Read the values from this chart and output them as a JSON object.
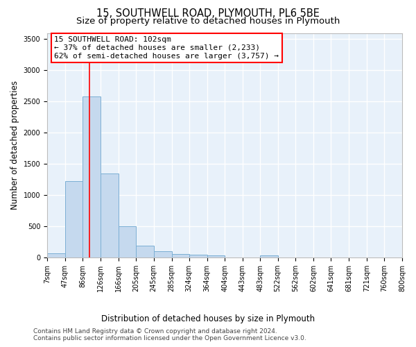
{
  "title_line1": "15, SOUTHWELL ROAD, PLYMOUTH, PL6 5BE",
  "title_line2": "Size of property relative to detached houses in Plymouth",
  "xlabel": "Distribution of detached houses by size in Plymouth",
  "ylabel": "Number of detached properties",
  "bar_color": "#c5d9ee",
  "bar_edge_color": "#7bafd4",
  "background_color": "#e8f1fa",
  "grid_color": "#d0dde8",
  "vline_color": "red",
  "vline_x": 102,
  "annotation_line1": "15 SOUTHWELL ROAD: 102sqm",
  "annotation_line2": "← 37% of detached houses are smaller (2,233)",
  "annotation_line3": "62% of semi-detached houses are larger (3,757) →",
  "bin_edges": [
    7,
    47,
    86,
    126,
    166,
    205,
    245,
    285,
    324,
    364,
    404,
    443,
    483,
    522,
    562,
    602,
    641,
    681,
    721,
    760,
    800
  ],
  "bar_heights": [
    60,
    1220,
    2580,
    1340,
    500,
    190,
    100,
    55,
    45,
    30,
    0,
    0,
    30,
    0,
    0,
    0,
    0,
    0,
    0,
    0
  ],
  "ylim": [
    0,
    3600
  ],
  "yticks": [
    0,
    500,
    1000,
    1500,
    2000,
    2500,
    3000,
    3500
  ],
  "footer_line1": "Contains HM Land Registry data © Crown copyright and database right 2024.",
  "footer_line2": "Contains public sector information licensed under the Open Government Licence v3.0.",
  "title_fontsize": 10.5,
  "subtitle_fontsize": 9.5,
  "axis_label_fontsize": 8.5,
  "tick_fontsize": 7,
  "annotation_fontsize": 8,
  "footer_fontsize": 6.5
}
